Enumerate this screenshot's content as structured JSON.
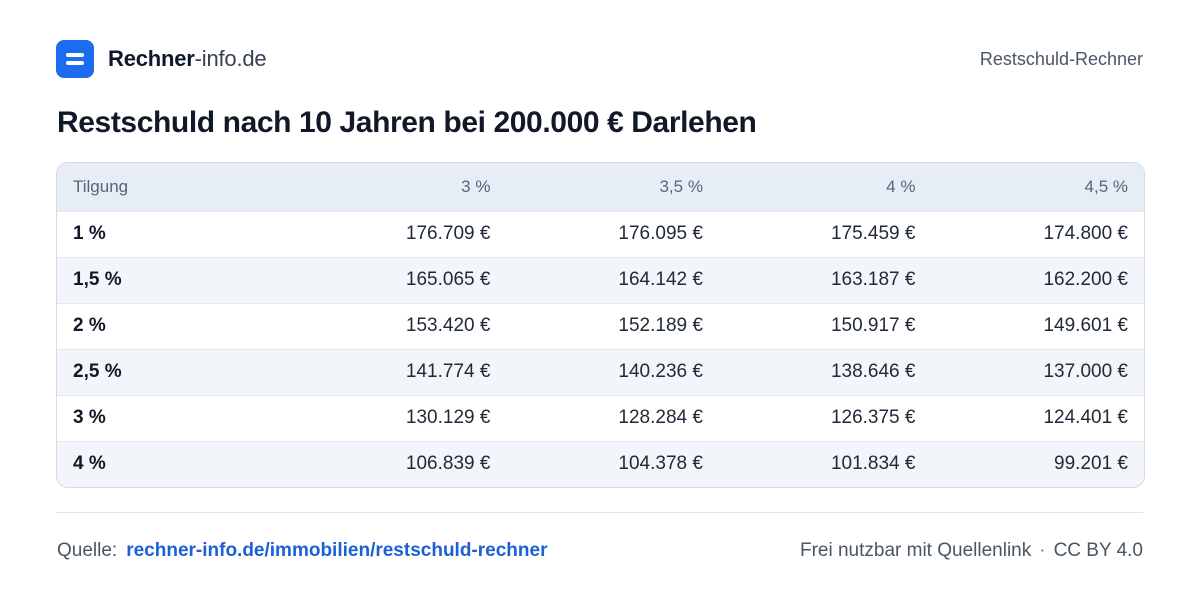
{
  "brand": {
    "name_bold": "Rechner",
    "name_light": "-info.de",
    "accent": "#1d6cf0"
  },
  "header": {
    "page_label": "Restschuld-Rechner"
  },
  "title": "Restschuld nach 10 Jahren bei 200.000 € Darlehen",
  "table": {
    "headers": [
      "Tilgung",
      "3 %",
      "3,5 %",
      "4 %",
      "4,5 %"
    ],
    "rows": [
      [
        "1 %",
        "176.709 €",
        "176.095 €",
        "175.459 €",
        "174.800 €"
      ],
      [
        "1,5 %",
        "165.065 €",
        "164.142 €",
        "163.187 €",
        "162.200 €"
      ],
      [
        "2 %",
        "153.420 €",
        "152.189 €",
        "150.917 €",
        "149.601 €"
      ],
      [
        "2,5 %",
        "141.774 €",
        "140.236 €",
        "138.646 €",
        "137.000 €"
      ],
      [
        "3 %",
        "130.129 €",
        "128.284 €",
        "126.375 €",
        "124.401 €"
      ],
      [
        "4 %",
        "106.839 €",
        "104.378 €",
        "101.834 €",
        "99.201 €"
      ]
    ]
  },
  "footer": {
    "source_label": "Quelle:",
    "source_link": "rechner-info.de/immobilien/restschuld-rechner",
    "license_text": "Frei nutzbar mit Quellenlink",
    "separator": "·",
    "license_name": "CC BY 4.0"
  }
}
